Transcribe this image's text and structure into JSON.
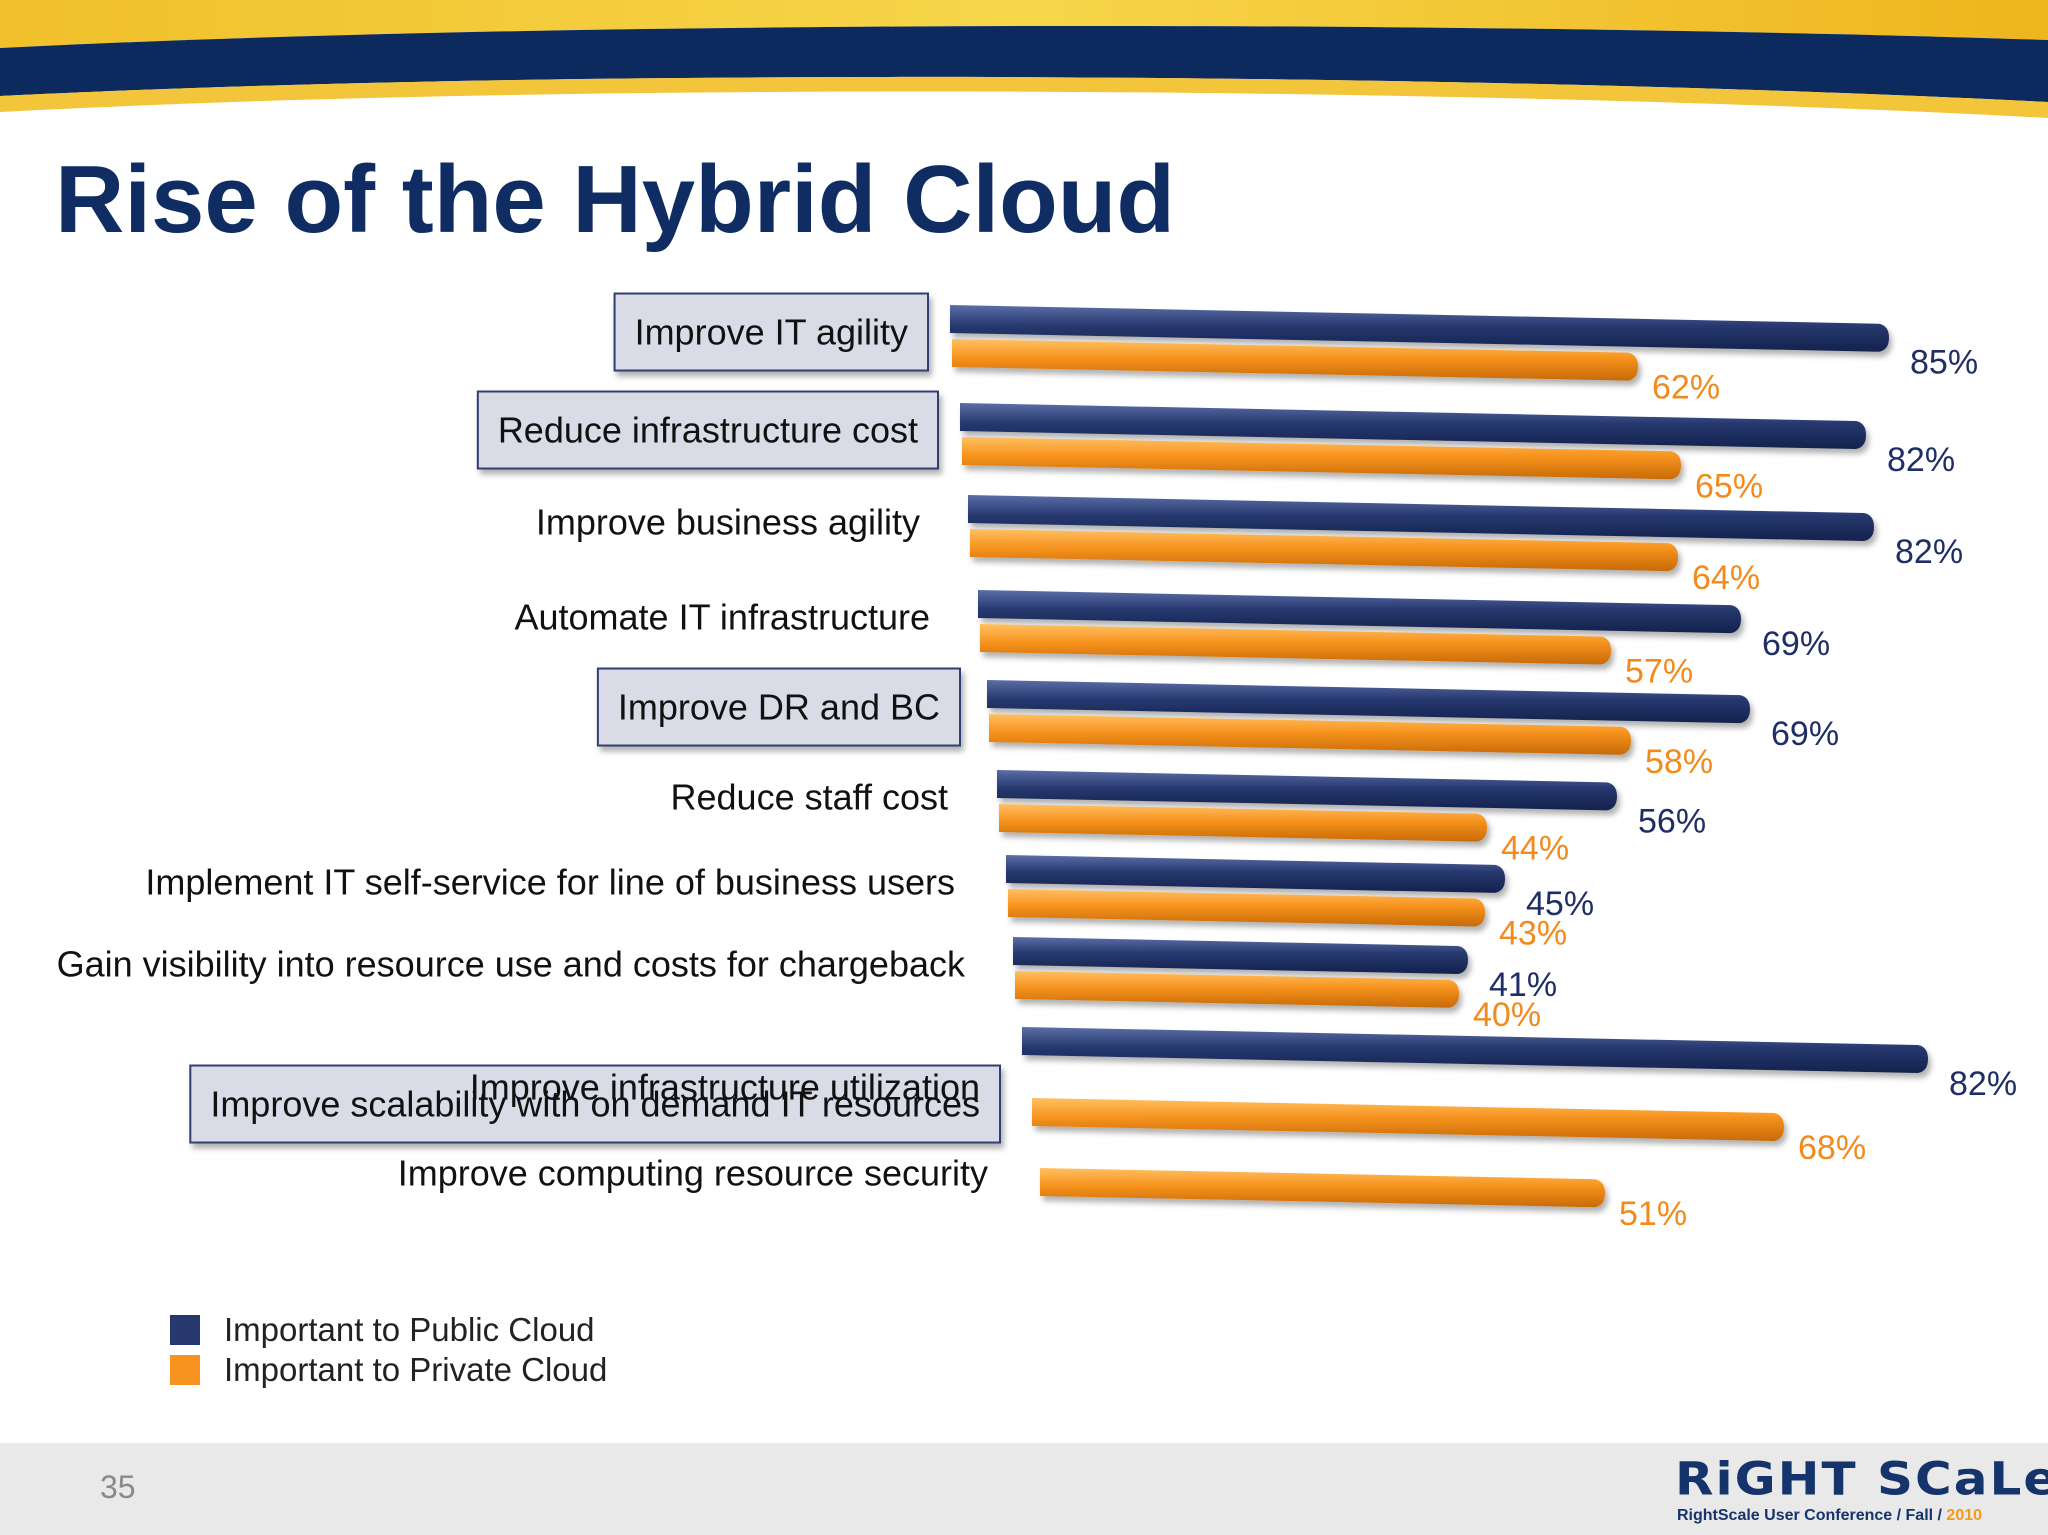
{
  "slide": {
    "title": "Rise of the Hybrid Cloud",
    "page_number": "35"
  },
  "logo": {
    "wordmark": "RiGHT SCaLe",
    "tagline": "RightScale User Conference / Fall / ",
    "year": "2010"
  },
  "colors": {
    "public": "#26386e",
    "private": "#f7931e",
    "title": "#0f2d63",
    "public_label": "#1f2f66",
    "private_label": "#f28a1c"
  },
  "legend": {
    "public_label": "Important to Public Cloud",
    "private_label": "Important to Private Cloud"
  },
  "chart_data": {
    "type": "bar",
    "orientation": "horizontal",
    "title": "",
    "categories": [
      "Improve IT agility",
      "Reduce infrastructure cost",
      "Improve business agility",
      "Automate IT infrastructure",
      "Improve DR and BC",
      "Reduce staff cost",
      "Implement IT self-service for line of business users",
      "Gain visibility into resource use and costs for chargeback",
      "Improve scalability with on demand IT resources",
      "Improve infrastructure utilization",
      "Improve computing resource security"
    ],
    "highlighted_categories": [
      "Improve IT agility",
      "Reduce infrastructure cost",
      "Improve DR and BC",
      "Improve scalability with on demand IT resources"
    ],
    "series": [
      {
        "name": "Important to Public Cloud",
        "values": [
          85,
          82,
          82,
          69,
          69,
          56,
          45,
          41,
          82,
          null,
          null
        ],
        "labels": [
          "85%",
          "82%",
          "82%",
          "69%",
          "69%",
          "56%",
          "45%",
          "41%",
          "82%",
          "",
          ""
        ]
      },
      {
        "name": "Important to Private Cloud",
        "values": [
          62,
          65,
          64,
          57,
          58,
          44,
          43,
          40,
          null,
          68,
          51
        ],
        "labels": [
          "62%",
          "65%",
          "64%",
          "57%",
          "58%",
          "44%",
          "43%",
          "40%",
          "",
          "68%",
          "51%"
        ]
      }
    ],
    "xlim": [
      0,
      100
    ],
    "grid": false,
    "legend_position": "bottom-left"
  }
}
